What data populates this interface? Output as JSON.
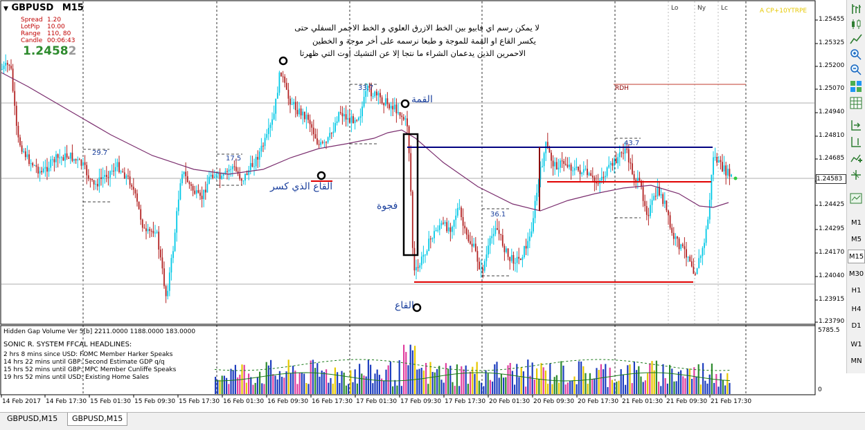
{
  "chart": {
    "symbol": "GBPUSD",
    "timeframe": "M15",
    "info": {
      "spread_label": "Spread",
      "spread_value": "1.20",
      "lotpip_label": "LotPip",
      "lotpip_value": "10.00",
      "range_label": "Range",
      "range_value": "110, 80",
      "candle_label": "Candle",
      "candle_value": "00:06:43",
      "price_big": "1.2458",
      "price_small": "2"
    },
    "corner_label": "A CP+10YTRPE",
    "session_labels": [
      "Lo",
      "Ny",
      "Lc"
    ],
    "rdh_label": "RDH",
    "level_labels": [
      "29.7",
      "17.5",
      "33.7",
      "36.1",
      "43.7"
    ],
    "price_axis": [
      "1.25455",
      "1.25325",
      "1.25200",
      "1.25070",
      "1.24940",
      "1.24810",
      "1.24685",
      "1.24555",
      "1.24425",
      "1.24295",
      "1.24170",
      "1.24040",
      "1.23915",
      "1.23790"
    ],
    "current_price": "1.24583",
    "time_axis": [
      "14 Feb 2017",
      "14 Feb 17:30",
      "15 Feb 01:30",
      "15 Feb 09:30",
      "15 Feb 17:30",
      "16 Feb 01:30",
      "16 Feb 09:30",
      "16 Feb 17:30",
      "17 Feb 01:30",
      "17 Feb 09:30",
      "17 Feb 17:30",
      "20 Feb 01:30",
      "20 Feb 09:30",
      "20 Feb 17:30",
      "21 Feb 01:30",
      "21 Feb 09:30",
      "21 Feb 17:30"
    ],
    "colors": {
      "up": "#00c8e6",
      "down": "#b22222",
      "ma": "#7a2d6e",
      "blue_line": "#000080",
      "red_line": "#e00000"
    }
  },
  "annotations": {
    "arabic_note_line1": "لا يمكن رسم اي فابيو بين الخط الازرق العلوي و الخط الاحمر السفلي حتى",
    "arabic_note_line2": "يكسر القاع او القمة للموجة و طبعا نرسمه على أخر موجة و الخطين",
    "arabic_note_line3": "الاحمرين الذين يدعمان الشراء ما نتجا إلا عن التشيك اوت التي ظهرتا",
    "peak": "القمة",
    "broken_trough": "القاع الذي كسر",
    "gap": "فجوة",
    "trough": "القاع"
  },
  "indicator": {
    "title": "Hidden Gap Volume Ver 5[b] 2211.0000 1188.0000 183.0000",
    "scale_top": "5785.5",
    "scale_bottom": "0",
    "headlines_title": "SONIC R. SYSTEM  FFCAL HEADLINES:",
    "headlines": [
      {
        "text": "2 hrs 8 mins since USD: FOMC Member Harker Speaks",
        "color": "#0000c8"
      },
      {
        "text": "14 hrs 22 mins until GBP: Second Estimate GDP q/q",
        "color": "#c80000"
      },
      {
        "text": "15 hrs 52 mins until GBP: MPC Member Cunliffe Speaks",
        "color": "#0000c8"
      },
      {
        "text": "19 hrs 52 mins until USD: Existing Home Sales",
        "color": "#0000c8"
      }
    ]
  },
  "timeframes": [
    "M1",
    "M5",
    "M15",
    "M30",
    "H1",
    "H4",
    "D1",
    "W1",
    "MN"
  ],
  "active_timeframe": "M15",
  "tabs": [
    "GBPUSD,M15",
    "GBPUSD,M15"
  ],
  "active_tab": 1
}
